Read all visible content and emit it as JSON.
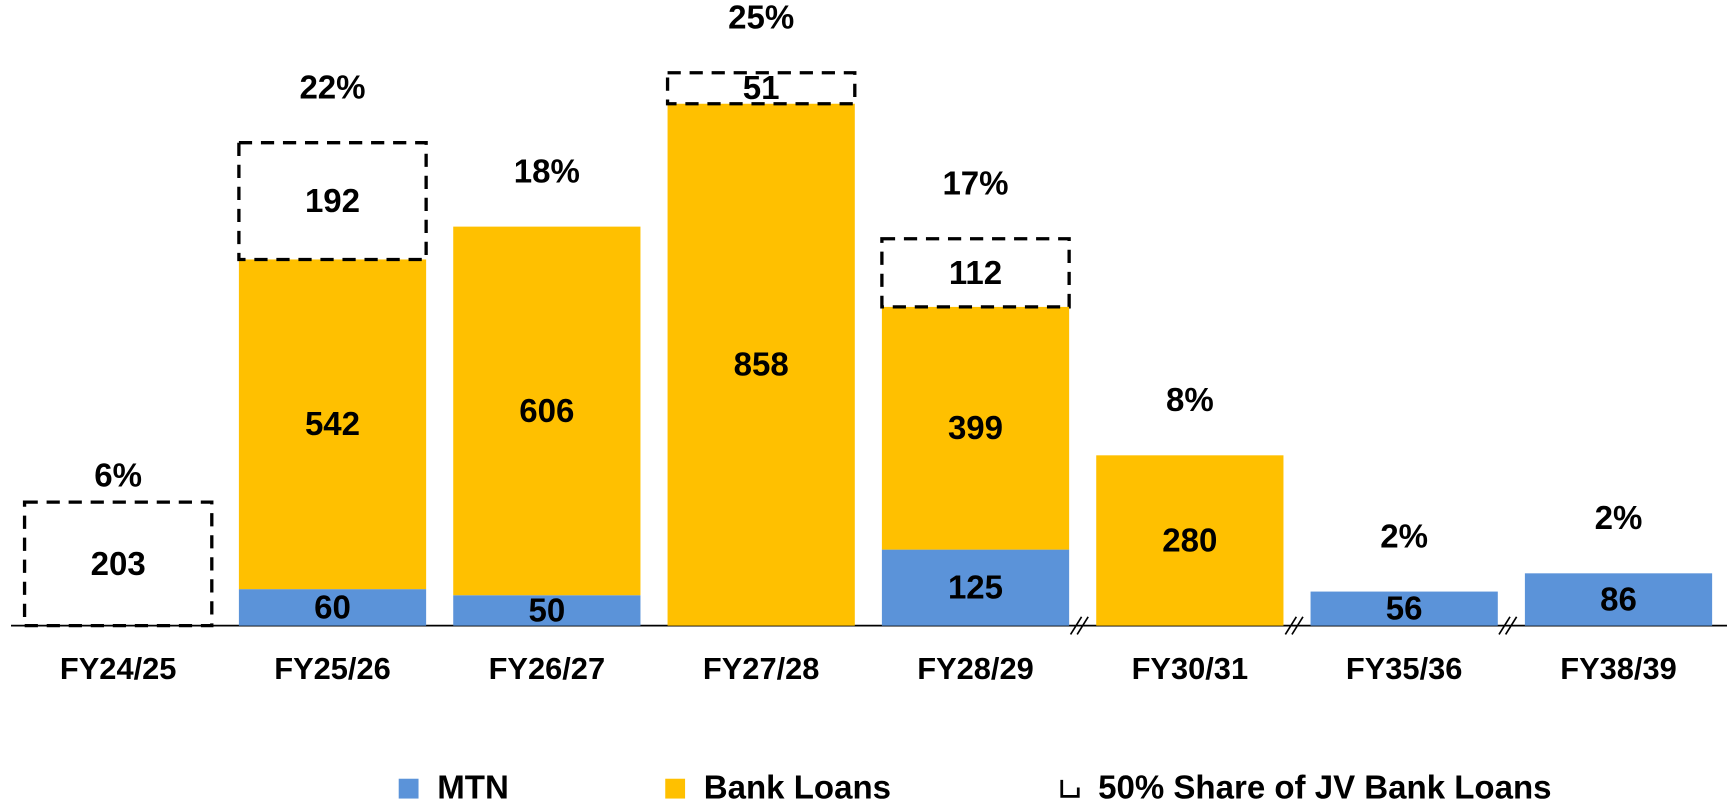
{
  "chart_data": {
    "type": "bar",
    "stacked": true,
    "categories": [
      "FY24/25",
      "FY25/26",
      "FY26/27",
      "FY27/28",
      "FY28/29",
      "FY30/31",
      "FY35/36",
      "FY38/39"
    ],
    "series": [
      {
        "name": "MTN",
        "color": "#5b93d9",
        "values": [
          null,
          60,
          50,
          null,
          125,
          null,
          56,
          86
        ]
      },
      {
        "name": "Bank Loans",
        "color": "#ffc000",
        "values": [
          null,
          542,
          606,
          858,
          399,
          280,
          null,
          null
        ]
      },
      {
        "name": "50% Share of JV Bank Loans",
        "color": "#000000",
        "style": "dashed",
        "values": [
          203,
          192,
          null,
          51,
          112,
          null,
          null,
          null
        ]
      }
    ],
    "share_labels": [
      "6%",
      "22%",
      "18%",
      "25%",
      "17%",
      "8%",
      "2%",
      "2%"
    ]
  }
}
